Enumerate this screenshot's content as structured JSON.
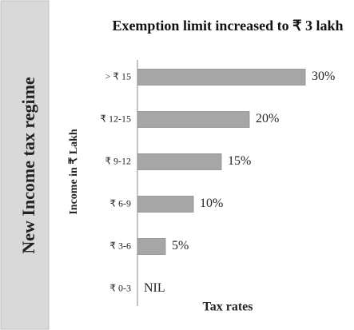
{
  "banner": {
    "text": "New Income tax regime"
  },
  "chart_data": {
    "type": "barh",
    "title": "Exemption limit  increased to ₹ 3 lakh",
    "y_label": "Income in ₹ Lakh",
    "x_label": "Tax rates",
    "categories": [
      "> ₹ 15",
      "₹ 12-15",
      "₹ 9-12",
      "₹ 6-9",
      "₹ 3-6",
      "₹ 0-3"
    ],
    "values": [
      30,
      20,
      15,
      10,
      5,
      0
    ],
    "value_labels": [
      "30%",
      "20%",
      "15%",
      "10%",
      "5%",
      "NIL"
    ],
    "color": "#a6a6a6",
    "xlim": [
      0,
      30
    ]
  }
}
